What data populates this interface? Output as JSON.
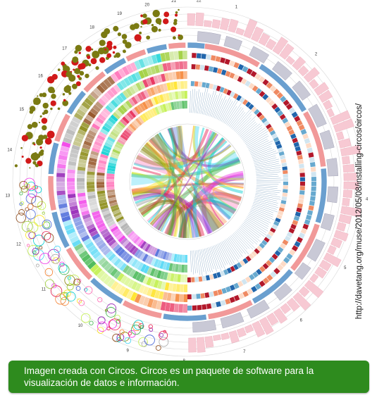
{
  "figure": {
    "caption": "Imagen creada con Circos. Circos es un paquete de software para la visualización de datos e información.",
    "source_url": "http://davetang.org/muse/2012/05/08/installing-circos/circos/",
    "colors": {
      "caption_background": "#2e8b1e",
      "caption_text": "#ffffff"
    }
  },
  "circos": {
    "chromosome_labels": [
      "1",
      "2",
      "3",
      "4",
      "5",
      "6",
      "7",
      "8",
      "9",
      "10",
      "11",
      "12",
      "13",
      "14",
      "15",
      "16",
      "17",
      "18",
      "19",
      "20",
      "21",
      "22"
    ],
    "palette": [
      "#e6194b",
      "#f58231",
      "#ffe119",
      "#bfef45",
      "#3cb44b",
      "#42d4f4",
      "#4363d8",
      "#911eb4",
      "#f032e6",
      "#a9a9a9",
      "#808000",
      "#8b4513",
      "#ff69b4",
      "#00ced1",
      "#9acd32"
    ]
  }
}
